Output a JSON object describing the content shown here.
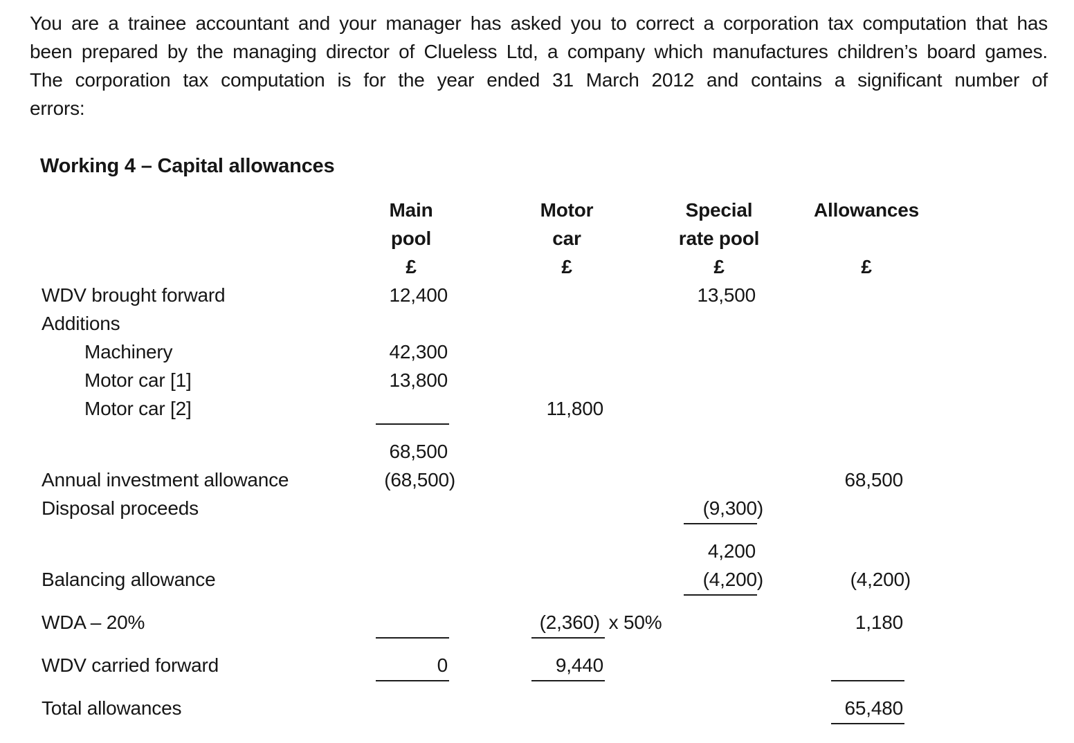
{
  "intro": {
    "lines": [
      "You are a trainee accountant and your manager has asked you to correct a corporation tax computation that has",
      "been prepared by the managing director of Clueless Ltd, a company which manufactures children’s board games.",
      "The corporation tax computation is for the year ended 31 March 2012 and contains a significant number of",
      "errors:"
    ]
  },
  "heading": "Working 4 – Capital allowances",
  "table": {
    "columns": [
      {
        "line1": "Main",
        "line2": "pool",
        "currency": "£"
      },
      {
        "line1": "Motor",
        "line2": "car",
        "currency": "£"
      },
      {
        "line1": "Special",
        "line2": "rate pool",
        "currency": "£"
      },
      {
        "line1": "Allowances",
        "line2": "",
        "currency": "£"
      }
    ],
    "rows": [
      {
        "label": "WDV brought forward",
        "main": "12,400",
        "motor": "",
        "special": "13,500",
        "allowances": ""
      },
      {
        "label": "Additions",
        "main": "",
        "motor": "",
        "special": "",
        "allowances": ""
      },
      {
        "label": "Machinery",
        "main": "42,300",
        "motor": "",
        "special": "",
        "allowances": ""
      },
      {
        "label": "Motor car [1]",
        "main": "13,800",
        "motor": "",
        "special": "",
        "allowances": ""
      },
      {
        "label": "Motor car [2]",
        "main": "",
        "motor": "11,800",
        "special": "",
        "allowances": ""
      },
      {
        "label": "",
        "main": "68,500",
        "motor": "",
        "special": "",
        "allowances": ""
      },
      {
        "label": "Annual investment allowance",
        "main": "(68,500)",
        "motor": "",
        "special": "",
        "allowances": "68,500"
      },
      {
        "label": "Disposal proceeds",
        "main": "",
        "motor": "",
        "special": "(9,300)",
        "allowances": ""
      },
      {
        "label": "",
        "main": "",
        "motor": "",
        "special": "4,200",
        "allowances": ""
      },
      {
        "label": "Balancing allowance",
        "main": "",
        "motor": "",
        "special": "(4,200)",
        "allowances": "(4,200)"
      },
      {
        "label": "WDA – 20%",
        "main": "",
        "motor": "(2,360)",
        "motor_suffix": " x 50%",
        "special": "",
        "allowances": "1,180"
      },
      {
        "label": "WDV carried forward",
        "main": "0",
        "motor": "9,440",
        "special": "",
        "allowances": ""
      },
      {
        "label": "Total allowances",
        "main": "",
        "motor": "",
        "special": "",
        "allowances": "65,480"
      }
    ]
  }
}
